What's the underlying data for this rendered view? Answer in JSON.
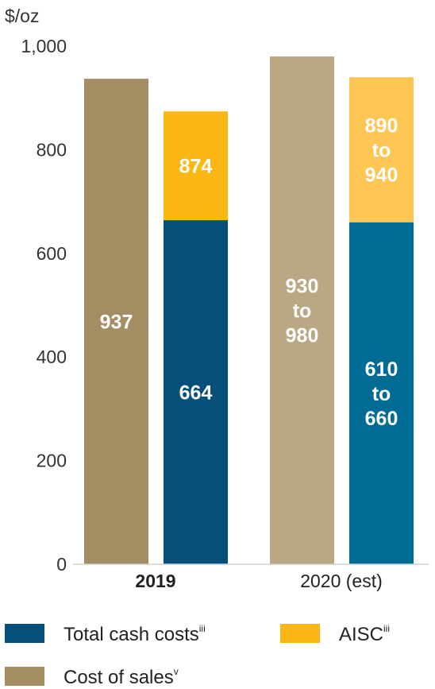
{
  "chart_data": {
    "type": "bar",
    "stacked": true,
    "unit_label": "$/oz",
    "ylim": [
      0,
      1000
    ],
    "yticks": [
      0,
      200,
      400,
      600,
      800,
      1000
    ],
    "ytick_labels": [
      "0",
      "200",
      "400",
      "600",
      "800",
      "1,000"
    ],
    "grid": false,
    "categories": [
      {
        "label": "2019",
        "bold": true
      },
      {
        "label": "2020 (est)",
        "bold": false
      }
    ],
    "bars": [
      {
        "category": 0,
        "series": "cost_of_sales",
        "segments": [
          {
            "base": 0,
            "value": 937,
            "color": "#a48d62",
            "label_lines": [
              "937"
            ]
          }
        ]
      },
      {
        "category": 0,
        "series": "total_cash_costs_aisc",
        "segments": [
          {
            "base": 0,
            "value": 664,
            "color": "#04507a",
            "label_lines": [
              "664"
            ]
          },
          {
            "base": 664,
            "value": 210,
            "color": "#fbb713",
            "label_lines": [
              "874"
            ]
          }
        ]
      },
      {
        "category": 1,
        "series": "cost_of_sales",
        "segments": [
          {
            "base": 0,
            "value": 980,
            "color": "#b9a883",
            "label_lines": [
              "930",
              "to",
              "980"
            ]
          }
        ]
      },
      {
        "category": 1,
        "series": "total_cash_costs_aisc",
        "segments": [
          {
            "base": 0,
            "value": 660,
            "color": "#006c96",
            "label_lines": [
              "610",
              "to",
              "660"
            ]
          },
          {
            "base": 660,
            "value": 280,
            "color": "#fec653",
            "label_lines": [
              "890",
              "to",
              "940"
            ]
          }
        ]
      }
    ],
    "legend": {
      "placement": "bottom",
      "items": [
        {
          "label": "Total cash costs",
          "sup": "iii",
          "color": "#04507a"
        },
        {
          "label": "AISC",
          "sup": "iii",
          "color": "#fbb713"
        },
        {
          "label": "Cost of sales",
          "sup": "v",
          "color": "#a48d62"
        }
      ]
    }
  }
}
